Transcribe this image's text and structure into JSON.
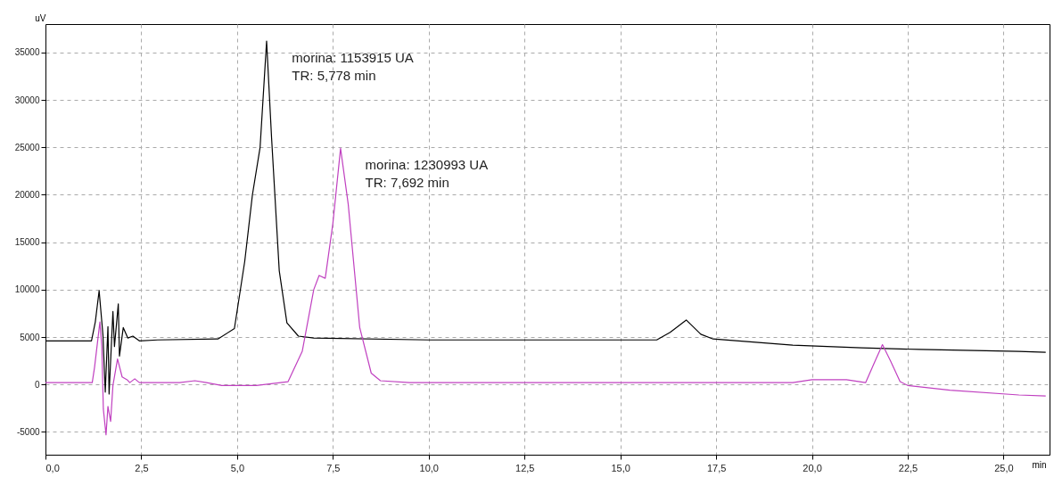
{
  "chart_data": {
    "type": "line",
    "xlabel": "min",
    "ylabel": "uV",
    "xlim": [
      0,
      26.2
    ],
    "ylim": [
      -7400,
      38000
    ],
    "xticks": [
      {
        "value": 0,
        "label": "0,0"
      },
      {
        "value": 2.5,
        "label": "2,5"
      },
      {
        "value": 5,
        "label": "5,0"
      },
      {
        "value": 7.5,
        "label": "7,5"
      },
      {
        "value": 10,
        "label": "10,0"
      },
      {
        "value": 12.5,
        "label": "12,5"
      },
      {
        "value": 15,
        "label": "15,0"
      },
      {
        "value": 17.5,
        "label": "17,5"
      },
      {
        "value": 20,
        "label": "20,0"
      },
      {
        "value": 22.5,
        "label": "22,5"
      },
      {
        "value": 25,
        "label": "25,0"
      }
    ],
    "yticks": [
      -5000,
      0,
      5000,
      10000,
      15000,
      20000,
      25000,
      30000,
      35000
    ],
    "grid": true,
    "series": [
      {
        "color": "#000000",
        "x": [
          0,
          1.2,
          1.3,
          1.4,
          1.5,
          1.56,
          1.63,
          1.66,
          1.76,
          1.8,
          1.9,
          1.93,
          2.03,
          2.15,
          2.28,
          2.45,
          2.93,
          4.5,
          4.93,
          5.2,
          5.4,
          5.6,
          5.77,
          5.9,
          6.1,
          6.3,
          6.6,
          7,
          10,
          15.95,
          16.3,
          16.72,
          17.1,
          17.42,
          19.5,
          21.3,
          22.8,
          25.4,
          26.1
        ],
        "values": [
          4600,
          4600,
          6600,
          9900,
          5200,
          -800,
          6100,
          -1000,
          7700,
          4000,
          8500,
          3000,
          6000,
          4900,
          5100,
          4600,
          4700,
          4800,
          5900,
          13000,
          20000,
          25000,
          36200,
          26000,
          12000,
          6500,
          5100,
          4900,
          4700,
          4700,
          5500,
          6800,
          5300,
          4800,
          4150,
          3870,
          3700,
          3500,
          3400
        ]
      },
      {
        "color": "#c040c0",
        "x": [
          0,
          1.22,
          1.28,
          1.42,
          1.47,
          1.51,
          1.58,
          1.63,
          1.7,
          1.76,
          1.88,
          2,
          2.13,
          2.2,
          2.33,
          2.45,
          3.5,
          3.9,
          4.2,
          4.6,
          5.5,
          6.33,
          6.7,
          7.0,
          7.14,
          7.3,
          7.5,
          7.7,
          7.9,
          8.2,
          8.5,
          8.74,
          9.5,
          19.5,
          20,
          20.9,
          21.4,
          21.65,
          21.84,
          22.05,
          22.3,
          22.5,
          23.6,
          25.4,
          26.1
        ],
        "values": [
          200,
          200,
          1800,
          6600,
          4000,
          -2600,
          -5300,
          -2300,
          -3900,
          -100,
          2700,
          800,
          500,
          200,
          600,
          200,
          200,
          400,
          200,
          -100,
          -100,
          300,
          3500,
          10000,
          11500,
          11200,
          17000,
          24900,
          19000,
          6000,
          1200,
          400,
          200,
          200,
          500,
          500,
          200,
          2500,
          4200,
          2500,
          300,
          -100,
          -600,
          -1100,
          -1200
        ]
      }
    ],
    "annotations": [
      {
        "text": "morina: 1153915 UA\nTR: 5,778 min",
        "x": 5.778,
        "y": 36200
      },
      {
        "text": "morina: 1230993 UA\nTR: 7,692 min",
        "x": 7.692,
        "y": 24900
      }
    ]
  }
}
